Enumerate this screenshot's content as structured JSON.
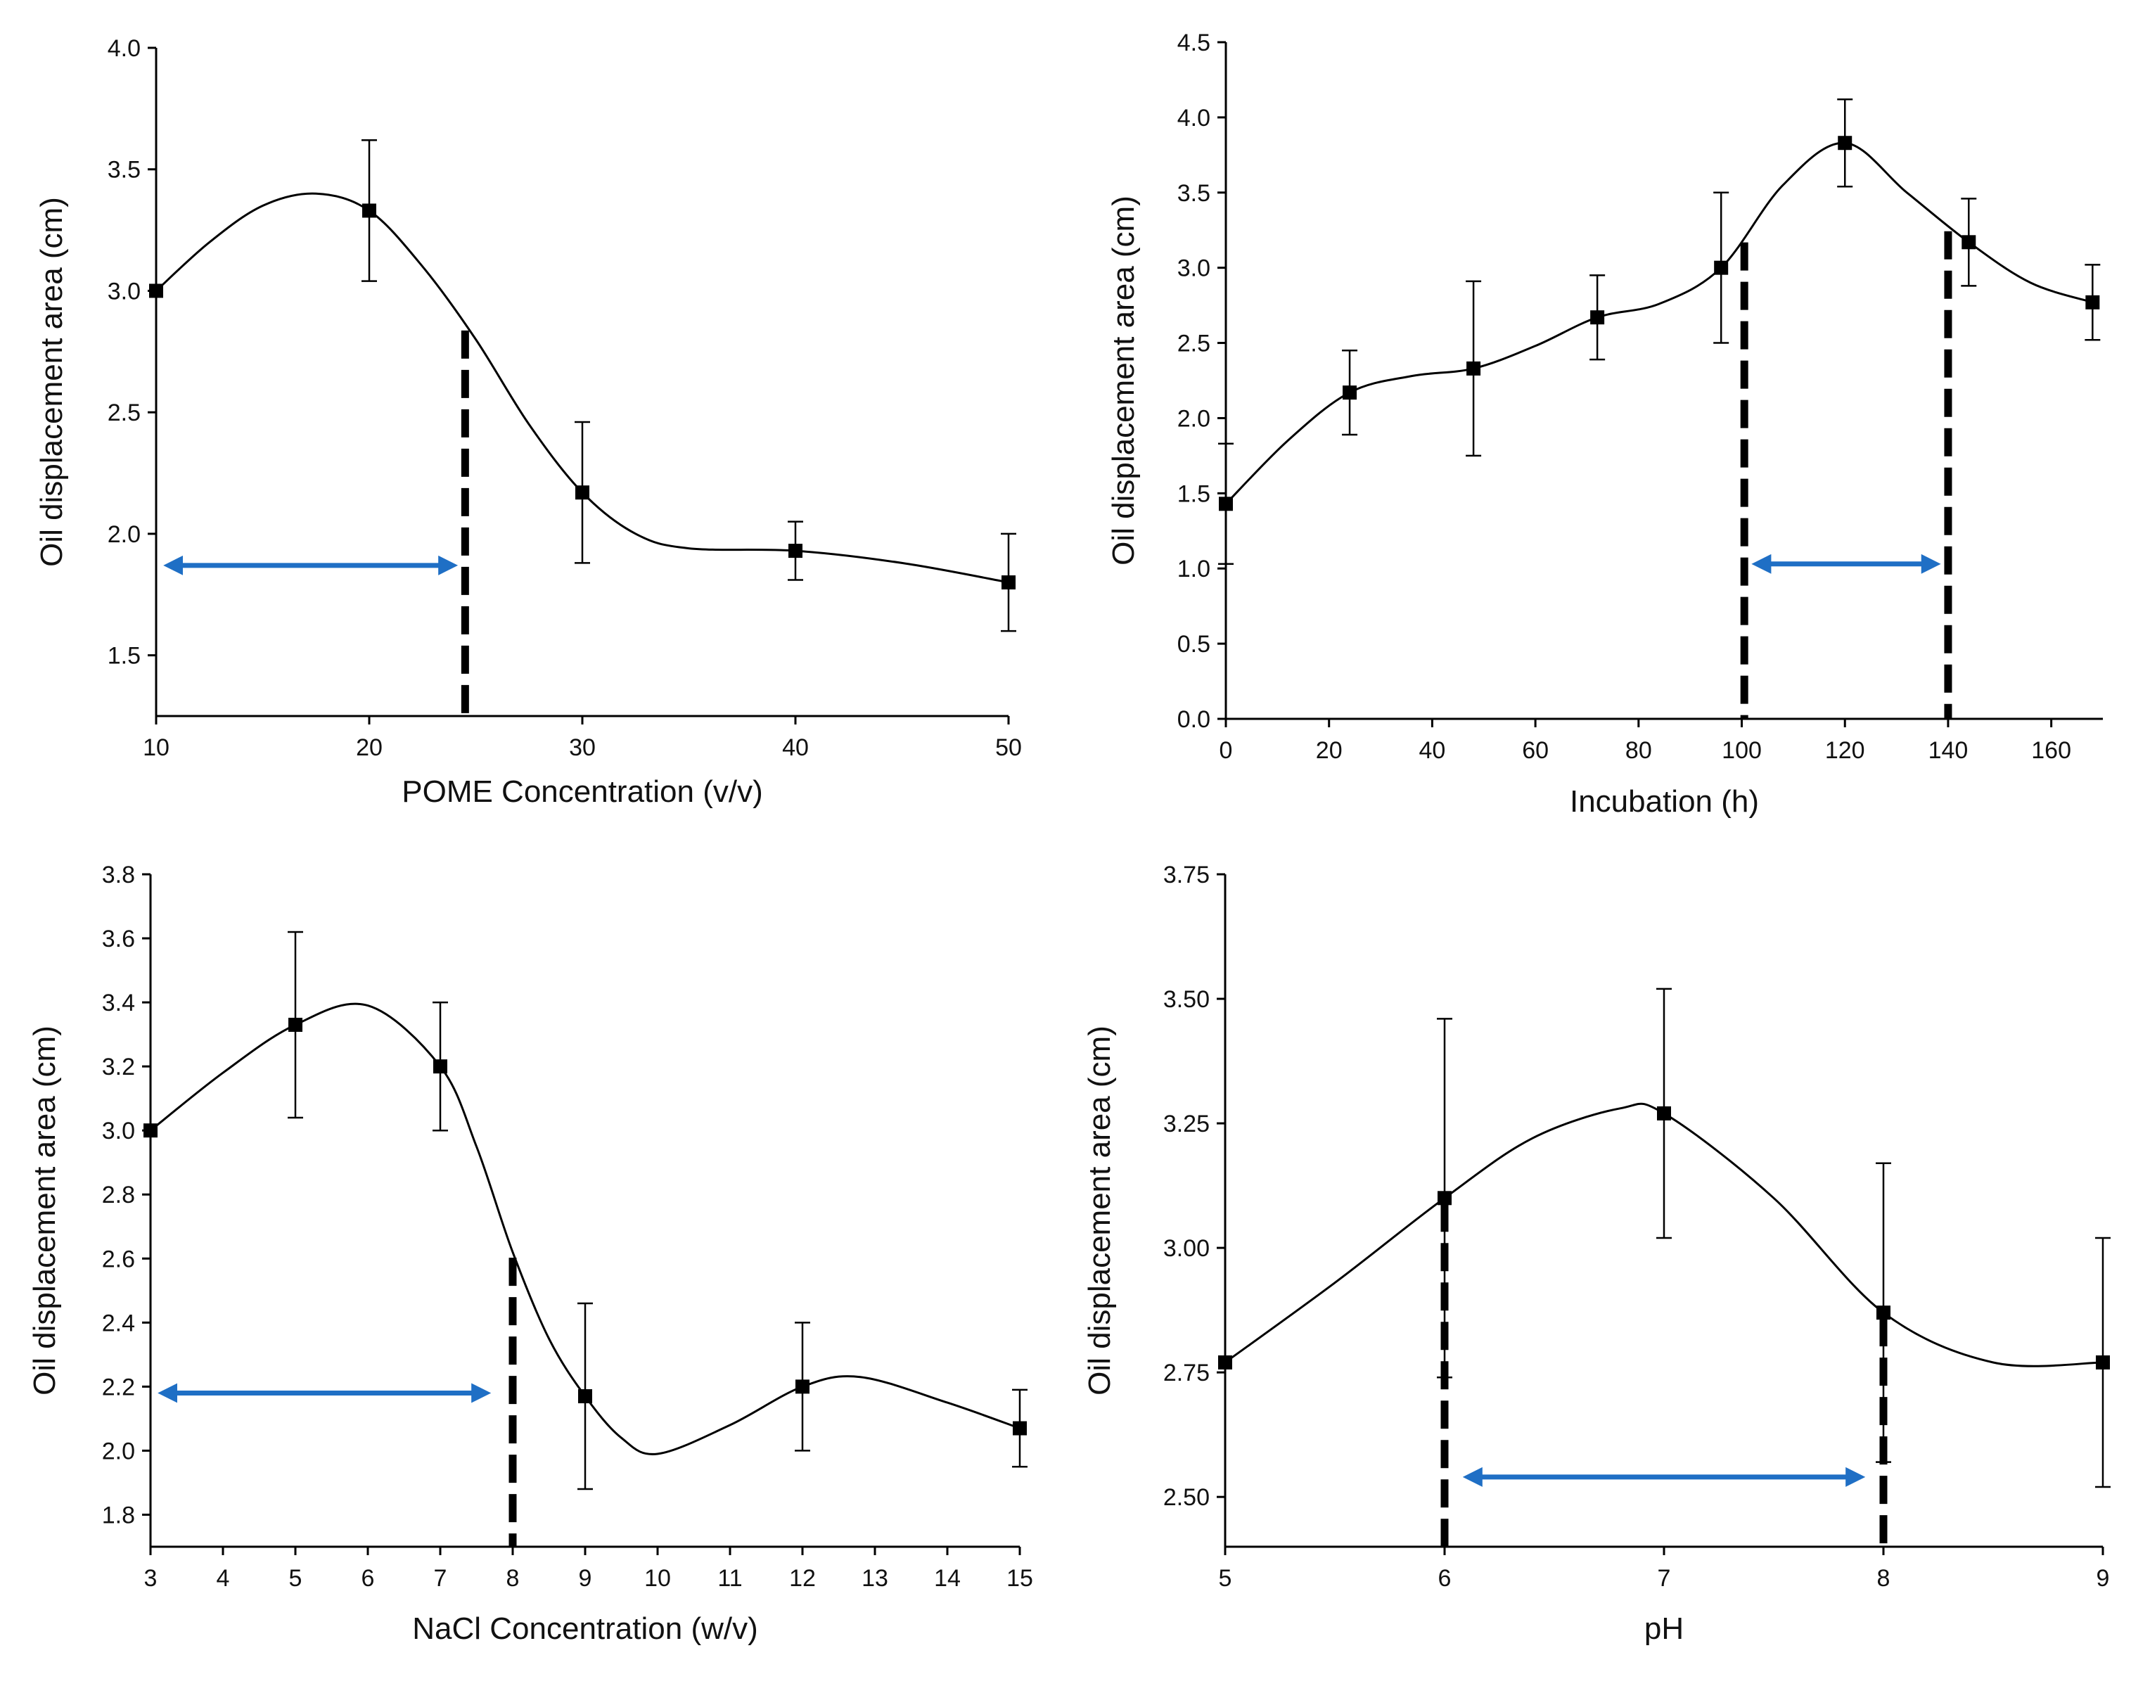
{
  "figure": {
    "colors": {
      "line": "#000000",
      "marker": "#000000",
      "arrow": "#1f6fc5",
      "dash": "#000000"
    }
  },
  "chart_data": [
    {
      "id": "pome",
      "type": "line",
      "xlabel": "POME Concentration (v/v)",
      "ylabel": "Oil displacement area (cm)",
      "xlim": [
        10,
        50
      ],
      "ylim": [
        1.25,
        4.0
      ],
      "xticks": [
        10,
        20,
        30,
        40,
        50
      ],
      "xtick_labels": [
        "10",
        "20",
        "30",
        "40",
        "50"
      ],
      "yticks": [
        1.5,
        2.0,
        2.5,
        3.0,
        3.5,
        4.0
      ],
      "ytick_labels": [
        "1.5",
        "2.0",
        "2.5",
        "3.0",
        "3.5",
        "4.0"
      ],
      "series": [
        {
          "name": "Oil displacement area",
          "x": [
            10,
            20,
            30,
            40,
            50
          ],
          "y": [
            3.0,
            3.33,
            2.17,
            1.93,
            1.8
          ],
          "err": [
            0.0,
            0.29,
            0.29,
            0.12,
            0.2
          ]
        }
      ],
      "curve": [
        [
          10,
          3.0
        ],
        [
          12.5,
          3.2
        ],
        [
          15,
          3.35
        ],
        [
          17.5,
          3.4
        ],
        [
          20,
          3.33
        ],
        [
          22.5,
          3.1
        ],
        [
          25,
          2.8
        ],
        [
          27.5,
          2.45
        ],
        [
          30,
          2.17
        ],
        [
          32.5,
          2.0
        ],
        [
          35,
          1.94
        ],
        [
          40,
          1.93
        ],
        [
          45,
          1.88
        ],
        [
          50,
          1.8
        ]
      ],
      "dashed_lines_x": [
        24.5
      ],
      "arrow": {
        "from_x": 10,
        "to_x": 24.5,
        "y": 1.87
      }
    },
    {
      "id": "incubation",
      "type": "line",
      "xlabel": "Incubation (h)",
      "ylabel": "Oil displacement area (cm)",
      "xlim": [
        0,
        170
      ],
      "ylim": [
        0.0,
        4.5
      ],
      "xticks": [
        0,
        20,
        40,
        60,
        80,
        100,
        120,
        140,
        160
      ],
      "xtick_labels": [
        "0",
        "20",
        "40",
        "60",
        "80",
        "100",
        "120",
        "140",
        "160"
      ],
      "yticks": [
        0.0,
        0.5,
        1.0,
        1.5,
        2.0,
        2.5,
        3.0,
        3.5,
        4.0,
        4.5
      ],
      "ytick_labels": [
        "0.0",
        "0.5",
        "1.0",
        "1.5",
        "2.0",
        "2.5",
        "3.0",
        "3.5",
        "4.0",
        "4.5"
      ],
      "series": [
        {
          "name": "Oil displacement area",
          "x": [
            0,
            24,
            48,
            72,
            96,
            120,
            144,
            168
          ],
          "y": [
            1.43,
            2.17,
            2.33,
            2.67,
            3.0,
            3.83,
            3.17,
            2.77
          ],
          "err": [
            0.4,
            0.28,
            0.58,
            0.28,
            0.5,
            0.29,
            0.29,
            0.25
          ]
        }
      ],
      "curve": [
        [
          0,
          1.43
        ],
        [
          12,
          1.85
        ],
        [
          24,
          2.17
        ],
        [
          36,
          2.28
        ],
        [
          48,
          2.33
        ],
        [
          60,
          2.48
        ],
        [
          72,
          2.67
        ],
        [
          84,
          2.76
        ],
        [
          96,
          3.0
        ],
        [
          108,
          3.55
        ],
        [
          120,
          3.83
        ],
        [
          132,
          3.5
        ],
        [
          144,
          3.17
        ],
        [
          156,
          2.9
        ],
        [
          168,
          2.77
        ]
      ],
      "dashed_lines_x": [
        100.5,
        140
      ],
      "arrow": {
        "from_x": 100.5,
        "to_x": 140,
        "y": 1.03
      }
    },
    {
      "id": "nacl",
      "type": "line",
      "xlabel": "NaCl Concentration (w/v)",
      "ylabel": "Oil displacement area (cm)",
      "xlim": [
        3,
        15
      ],
      "ylim": [
        1.7,
        3.8
      ],
      "xticks": [
        3,
        4,
        5,
        6,
        7,
        8,
        9,
        10,
        11,
        12,
        13,
        14,
        15
      ],
      "xtick_labels": [
        "3",
        "4",
        "5",
        "6",
        "7",
        "8",
        "9",
        "10",
        "11",
        "12",
        "13",
        "14",
        "15"
      ],
      "yticks": [
        1.8,
        2.0,
        2.2,
        2.4,
        2.6,
        2.8,
        3.0,
        3.2,
        3.4,
        3.6,
        3.8
      ],
      "ytick_labels": [
        "1.8",
        "2.0",
        "2.2",
        "2.4",
        "2.6",
        "2.8",
        "3.0",
        "3.2",
        "3.4",
        "3.6",
        "3.8"
      ],
      "series": [
        {
          "name": "Oil displacement area",
          "x": [
            3,
            5,
            7,
            9,
            12,
            15
          ],
          "y": [
            3.0,
            3.33,
            3.2,
            2.17,
            2.2,
            2.07
          ],
          "err": [
            0.0,
            0.29,
            0.2,
            0.29,
            0.2,
            0.12
          ]
        }
      ],
      "curve": [
        [
          3,
          3.0
        ],
        [
          4,
          3.18
        ],
        [
          5,
          3.33
        ],
        [
          6,
          3.39
        ],
        [
          7,
          3.2
        ],
        [
          7.5,
          2.95
        ],
        [
          8,
          2.62
        ],
        [
          8.5,
          2.35
        ],
        [
          9,
          2.17
        ],
        [
          9.5,
          2.04
        ],
        [
          10,
          1.99
        ],
        [
          11,
          2.08
        ],
        [
          12,
          2.2
        ],
        [
          12.8,
          2.23
        ],
        [
          14,
          2.15
        ],
        [
          15,
          2.07
        ]
      ],
      "dashed_lines_x": [
        8
      ],
      "arrow": {
        "from_x": 3,
        "to_x": 7.8,
        "y": 2.18
      }
    },
    {
      "id": "ph",
      "type": "line",
      "xlabel": "pH",
      "ylabel": "Oil displacement area (cm)",
      "xlim": [
        5,
        9
      ],
      "ylim": [
        2.4,
        3.75
      ],
      "xticks": [
        5,
        6,
        7,
        8,
        9
      ],
      "xtick_labels": [
        "5",
        "6",
        "7",
        "8",
        "9"
      ],
      "yticks": [
        2.5,
        2.75,
        3.0,
        3.25,
        3.5,
        3.75
      ],
      "ytick_labels": [
        "2.50",
        "2.75",
        "3.00",
        "3.25",
        "3.50",
        "3.75"
      ],
      "series": [
        {
          "name": "Oil displacement area",
          "x": [
            5,
            6,
            7,
            8,
            9
          ],
          "y": [
            2.77,
            3.1,
            3.27,
            2.87,
            2.77
          ],
          "err": [
            0.0,
            0.36,
            0.25,
            0.3,
            0.25
          ]
        }
      ],
      "curve": [
        [
          5,
          2.77
        ],
        [
          5.5,
          2.93
        ],
        [
          6,
          3.1
        ],
        [
          6.4,
          3.22
        ],
        [
          6.8,
          3.28
        ],
        [
          7,
          3.27
        ],
        [
          7.5,
          3.1
        ],
        [
          8,
          2.87
        ],
        [
          8.5,
          2.77
        ],
        [
          9,
          2.77
        ]
      ],
      "dashed_lines_x": [
        6,
        8
      ],
      "arrow": {
        "from_x": 6.05,
        "to_x": 7.95,
        "y": 2.54
      }
    }
  ]
}
